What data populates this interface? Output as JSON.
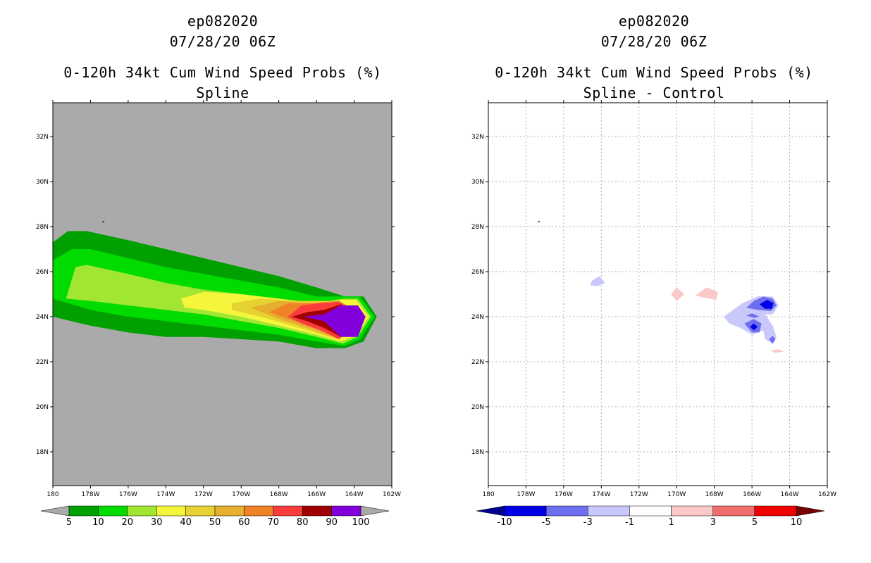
{
  "left_panel": {
    "storm_id": "ep082020",
    "datetime": "07/28/20 06Z",
    "product": "0-120h 34kt Cum Wind Speed Probs (%)",
    "subtitle": "Spline",
    "background_color": "#aaaaaa"
  },
  "right_panel": {
    "storm_id": "ep082020",
    "datetime": "07/28/20 06Z",
    "product": "0-120h 34kt Cum Wind Speed Probs (%)",
    "subtitle": "Spline - Control",
    "background_color": "#ffffff"
  },
  "map_extent": {
    "lon_min": -180,
    "lon_max": -162,
    "lat_min": 16.5,
    "lat_max": 33.5
  },
  "x_ticks": [
    "180",
    "178W",
    "176W",
    "174W",
    "172W",
    "170W",
    "168W",
    "166W",
    "164W",
    "162W"
  ],
  "y_ticks": [
    "18N",
    "20N",
    "22N",
    "24N",
    "26N",
    "28N",
    "30N",
    "32N"
  ],
  "left_colorbar": {
    "labels": [
      "5",
      "10",
      "20",
      "30",
      "40",
      "50",
      "60",
      "70",
      "80",
      "90",
      "100"
    ],
    "colors": [
      "#00a000",
      "#00dc00",
      "#a0e632",
      "#f5f53c",
      "#e6d232",
      "#e6af2d",
      "#f08228",
      "#fa3c3c",
      "#a00000",
      "#8200dc"
    ],
    "under_color": "#aaaaaa",
    "over_color": "#aaaaaa"
  },
  "right_colorbar": {
    "labels": [
      "-10",
      "-5",
      "-3",
      "-1",
      "1",
      "3",
      "5",
      "10"
    ],
    "colors": [
      "#0000e6",
      "#6e6ef0",
      "#c8c8fa",
      "#ffffff",
      "#fac8c8",
      "#f06e6e",
      "#f00000"
    ],
    "under_color": "#00008c",
    "over_color": "#780000"
  },
  "left_contours": [
    {
      "level": "5",
      "color": "#00a000",
      "points": [
        [
          -180,
          27.3
        ],
        [
          -179.2,
          27.8
        ],
        [
          -178.2,
          27.8
        ],
        [
          -176,
          27.4
        ],
        [
          -174,
          27.0
        ],
        [
          -172,
          26.6
        ],
        [
          -170,
          26.2
        ],
        [
          -168,
          25.8
        ],
        [
          -166,
          25.3
        ],
        [
          -164.5,
          24.9
        ],
        [
          -163.5,
          24.9
        ],
        [
          -162.8,
          24.0
        ],
        [
          -163.5,
          22.9
        ],
        [
          -164.5,
          22.6
        ],
        [
          -166,
          22.6
        ],
        [
          -168,
          22.9
        ],
        [
          -170,
          23.0
        ],
        [
          -172,
          23.1
        ],
        [
          -174,
          23.1
        ],
        [
          -176,
          23.3
        ],
        [
          -178,
          23.6
        ],
        [
          -179.5,
          23.9
        ],
        [
          -180,
          24.0
        ]
      ]
    },
    {
      "level": "10",
      "color": "#00dc00",
      "points": [
        [
          -180,
          26.5
        ],
        [
          -179,
          27.0
        ],
        [
          -178,
          27.0
        ],
        [
          -176,
          26.6
        ],
        [
          -174,
          26.2
        ],
        [
          -172,
          25.9
        ],
        [
          -170,
          25.6
        ],
        [
          -168,
          25.3
        ],
        [
          -166,
          24.9
        ],
        [
          -164.6,
          24.9
        ],
        [
          -163.7,
          24.9
        ],
        [
          -162.9,
          24.0
        ],
        [
          -163.7,
          23.0
        ],
        [
          -164.5,
          22.7
        ],
        [
          -166,
          22.9
        ],
        [
          -168,
          23.2
        ],
        [
          -170,
          23.4
        ],
        [
          -172,
          23.6
        ],
        [
          -174,
          23.8
        ],
        [
          -176,
          24.0
        ],
        [
          -178,
          24.3
        ],
        [
          -180,
          24.8
        ]
      ]
    },
    {
      "level": "20",
      "color": "#a0e632",
      "points": [
        [
          -179.3,
          24.8
        ],
        [
          -178.8,
          26.2
        ],
        [
          -178.2,
          26.3
        ],
        [
          -176,
          25.9
        ],
        [
          -174,
          25.5
        ],
        [
          -172,
          25.2
        ],
        [
          -170,
          25.0
        ],
        [
          -168,
          24.8
        ],
        [
          -166,
          24.6
        ],
        [
          -164.6,
          24.8
        ],
        [
          -163.8,
          24.8
        ],
        [
          -163.1,
          24.0
        ],
        [
          -163.8,
          23.1
        ],
        [
          -164.6,
          22.8
        ],
        [
          -166,
          23.1
        ],
        [
          -168,
          23.5
        ],
        [
          -170,
          23.8
        ],
        [
          -172,
          24.1
        ],
        [
          -174,
          24.3
        ],
        [
          -176,
          24.5
        ],
        [
          -178,
          24.7
        ]
      ]
    },
    {
      "level": "30",
      "color": "#f5f53c",
      "points": [
        [
          -173.2,
          24.8
        ],
        [
          -172,
          25.1
        ],
        [
          -170,
          25.0
        ],
        [
          -168,
          24.8
        ],
        [
          -166,
          24.6
        ],
        [
          -164.7,
          24.75
        ],
        [
          -163.9,
          24.75
        ],
        [
          -163.2,
          24.0
        ],
        [
          -163.9,
          23.15
        ],
        [
          -164.7,
          22.9
        ],
        [
          -166,
          23.2
        ],
        [
          -168,
          23.6
        ],
        [
          -170,
          24.0
        ],
        [
          -172,
          24.3
        ],
        [
          -173,
          24.4
        ]
      ]
    },
    {
      "level": "40",
      "color": "#e6d232",
      "points": [
        [
          -170.5,
          24.6
        ],
        [
          -169,
          24.8
        ],
        [
          -167,
          24.7
        ],
        [
          -165,
          24.7
        ],
        [
          -163.3,
          24.0
        ],
        [
          -164.9,
          23.0
        ],
        [
          -166.5,
          23.4
        ],
        [
          -168.5,
          23.9
        ],
        [
          -170.5,
          24.3
        ]
      ]
    },
    {
      "level": "50",
      "color": "#e6af2d",
      "points": [
        [
          -169.5,
          24.4
        ],
        [
          -168,
          24.7
        ],
        [
          -166.5,
          24.6
        ],
        [
          -164.8,
          24.7
        ],
        [
          -163.4,
          24.0
        ],
        [
          -164.8,
          23.0
        ],
        [
          -166.5,
          23.5
        ],
        [
          -168,
          23.9
        ]
      ]
    },
    {
      "level": "60",
      "color": "#f08228",
      "points": [
        [
          -168.5,
          24.2
        ],
        [
          -167.5,
          24.6
        ],
        [
          -166,
          24.6
        ],
        [
          -164.8,
          24.7
        ],
        [
          -163.4,
          24.0
        ],
        [
          -164.8,
          23.0
        ],
        [
          -166,
          23.5
        ],
        [
          -167.5,
          23.9
        ]
      ]
    },
    {
      "level": "70",
      "color": "#fa3c3c",
      "points": [
        [
          -167.5,
          24.0
        ],
        [
          -166.8,
          24.5
        ],
        [
          -165.8,
          24.6
        ],
        [
          -164.8,
          24.65
        ],
        [
          -163.5,
          24.0
        ],
        [
          -164.8,
          23.0
        ],
        [
          -165.8,
          23.4
        ],
        [
          -166.8,
          23.7
        ]
      ]
    },
    {
      "level": "80",
      "color": "#a00000",
      "points": [
        [
          -167.3,
          24.0
        ],
        [
          -166.5,
          24.2
        ],
        [
          -165.6,
          24.3
        ],
        [
          -164.7,
          24.55
        ],
        [
          -163.6,
          24.0
        ],
        [
          -164.7,
          23.1
        ],
        [
          -165.6,
          23.5
        ],
        [
          -166.5,
          23.8
        ]
      ]
    },
    {
      "level": "90",
      "color": "#8200dc",
      "points": [
        [
          -166.7,
          24.0
        ],
        [
          -165.6,
          24.1
        ],
        [
          -164.7,
          24.5
        ],
        [
          -163.8,
          24.5
        ],
        [
          -163.4,
          24.0
        ],
        [
          -163.8,
          23.1
        ],
        [
          -164.7,
          23.1
        ],
        [
          -165.6,
          23.8
        ]
      ]
    }
  ],
  "right_contours": [
    {
      "level": "-3..-1",
      "color": "#c8c8fa",
      "points": [
        [
          -174.5,
          25.6
        ],
        [
          -174.1,
          25.8
        ],
        [
          -173.8,
          25.5
        ],
        [
          -174.2,
          25.35
        ],
        [
          -174.6,
          25.4
        ]
      ]
    },
    {
      "level": "-3..-1",
      "color": "#c8c8fa",
      "points": [
        [
          -167.5,
          24.0
        ],
        [
          -166.5,
          24.6
        ],
        [
          -165.7,
          24.9
        ],
        [
          -164.9,
          24.9
        ],
        [
          -164.6,
          24.5
        ],
        [
          -164.9,
          24.1
        ],
        [
          -165.3,
          24.1
        ],
        [
          -164.9,
          23.6
        ],
        [
          -164.7,
          23.1
        ],
        [
          -164.9,
          22.8
        ],
        [
          -165.3,
          23.0
        ],
        [
          -165.4,
          23.4
        ],
        [
          -166.0,
          23.2
        ],
        [
          -166.6,
          23.5
        ],
        [
          -167.2,
          23.7
        ]
      ]
    },
    {
      "level": "-5..-3",
      "color": "#6e6ef0",
      "points": [
        [
          -165.9,
          24.7
        ],
        [
          -165.4,
          24.9
        ],
        [
          -164.9,
          24.8
        ],
        [
          -164.7,
          24.5
        ],
        [
          -165.0,
          24.25
        ],
        [
          -165.7,
          24.3
        ],
        [
          -166.3,
          24.4
        ]
      ]
    },
    {
      "level": "-5..-3",
      "color": "#6e6ef0",
      "points": [
        [
          -166.4,
          23.7
        ],
        [
          -165.9,
          23.9
        ],
        [
          -165.5,
          23.7
        ],
        [
          -165.6,
          23.3
        ],
        [
          -166.0,
          23.3
        ]
      ]
    },
    {
      "level": "-5..-3",
      "color": "#6e6ef0",
      "points": [
        [
          -166.3,
          24.05
        ],
        [
          -166.0,
          24.15
        ],
        [
          -165.6,
          24.0
        ],
        [
          -165.9,
          23.95
        ]
      ]
    },
    {
      "level": "-5..-3",
      "color": "#6e6ef0",
      "points": [
        [
          -165.1,
          23.0
        ],
        [
          -164.9,
          23.15
        ],
        [
          -164.75,
          23.0
        ],
        [
          -164.9,
          22.8
        ]
      ]
    },
    {
      "level": "-10..-5",
      "color": "#0000e6",
      "points": [
        [
          -165.6,
          24.55
        ],
        [
          -165.2,
          24.75
        ],
        [
          -164.85,
          24.6
        ],
        [
          -164.95,
          24.35
        ],
        [
          -165.3,
          24.35
        ]
      ]
    },
    {
      "level": "-10..-5",
      "color": "#0000e6",
      "points": [
        [
          -166.1,
          23.55
        ],
        [
          -165.9,
          23.7
        ],
        [
          -165.7,
          23.55
        ],
        [
          -165.9,
          23.4
        ]
      ]
    },
    {
      "level": "1..3",
      "color": "#fac8c8",
      "points": [
        [
          -170.3,
          25.0
        ],
        [
          -170.0,
          25.3
        ],
        [
          -169.6,
          25.0
        ],
        [
          -170.0,
          24.7
        ]
      ]
    },
    {
      "level": "1..3",
      "color": "#fac8c8",
      "points": [
        [
          -169.0,
          24.95
        ],
        [
          -168.4,
          25.3
        ],
        [
          -167.8,
          25.1
        ],
        [
          -167.9,
          24.75
        ],
        [
          -168.6,
          24.85
        ]
      ]
    },
    {
      "level": "1..3",
      "color": "#fac8c8",
      "points": [
        [
          -165.0,
          22.5
        ],
        [
          -164.6,
          22.55
        ],
        [
          -164.3,
          22.45
        ],
        [
          -164.8,
          22.4
        ]
      ]
    }
  ]
}
